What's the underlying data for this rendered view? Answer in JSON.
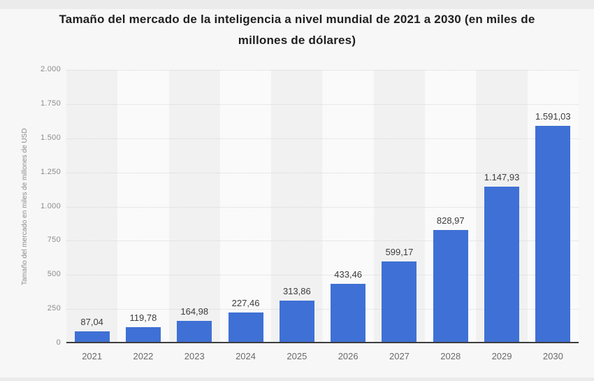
{
  "title": {
    "line1": "Tamaño del mercado de la inteligencia a nivel mundial de 2021 a 2030 (en miles de",
    "line2": "millones de dólares)"
  },
  "chart_data": {
    "type": "bar",
    "title": "Tamaño del mercado de la inteligencia a nivel mundial de 2021 a 2030 (en miles de millones de dólares)",
    "categories": [
      "2021",
      "2022",
      "2023",
      "2024",
      "2025",
      "2026",
      "2027",
      "2028",
      "2029",
      "2030"
    ],
    "values": [
      87.04,
      119.78,
      164.98,
      227.46,
      313.86,
      433.46,
      599.17,
      828.97,
      1147.93,
      1591.03
    ],
    "value_labels": [
      "87,04",
      "119,78",
      "164,98",
      "227,46",
      "313,86",
      "433,46",
      "599,17",
      "828,97",
      "1.147,93",
      "1.591,03"
    ],
    "xlabel": "",
    "ylabel": "Tamaño del mercado en miles de millones de USD",
    "ylim": [
      0,
      2000
    ],
    "y_ticks": [
      0,
      250,
      500,
      750,
      1000,
      1250,
      1500,
      1750,
      2000
    ],
    "y_tick_labels": [
      "0",
      "250",
      "500",
      "750",
      "1.000",
      "1.250",
      "1.500",
      "1.750",
      "2.000"
    ],
    "grid": "horizontal-dotted",
    "legend": "none",
    "colors": {
      "bar": "#3f70d5",
      "band_dark": "#f1f1f1",
      "band_light": "#fafafa",
      "axis_line": "#3e3e3e",
      "gridline": "#d6d6d6"
    }
  }
}
